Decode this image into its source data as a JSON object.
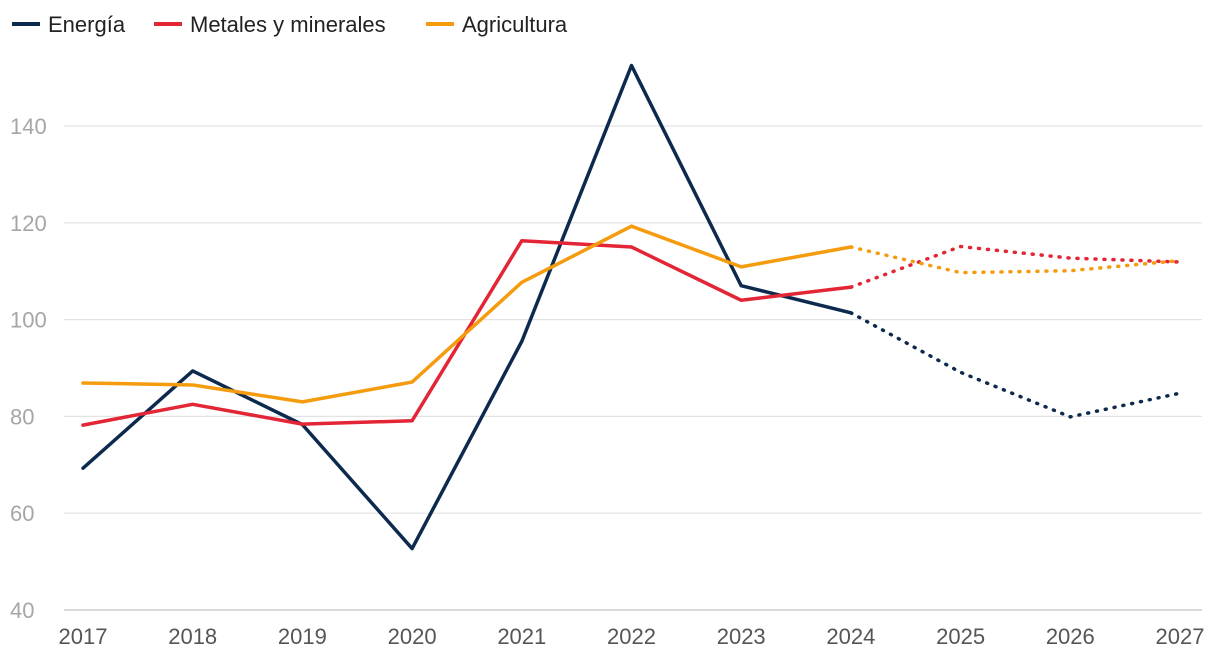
{
  "chart_data": {
    "type": "line",
    "title": "",
    "xlabel": "",
    "ylabel": "",
    "x": [
      "2017",
      "2018",
      "2019",
      "2020",
      "2021",
      "2022",
      "2023",
      "2024",
      "2025",
      "2026",
      "2027"
    ],
    "ylim": [
      40,
      150
    ],
    "yticks": [
      40,
      60,
      80,
      100,
      120,
      140
    ],
    "grid": true,
    "legend_position": "top-left",
    "forecast_from": "2024",
    "series": [
      {
        "name": "Energía",
        "color": "#0d2a4e",
        "values": [
          69.3,
          89.4,
          78.3,
          52.7,
          95.5,
          152.5,
          107.0,
          101.4,
          89.1,
          79.9,
          84.8
        ]
      },
      {
        "name": "Metales y minerales",
        "color": "#e32636",
        "values": [
          78.2,
          82.5,
          78.4,
          79.1,
          116.3,
          115.0,
          104.0,
          106.7,
          115.1,
          112.7,
          111.9
        ]
      },
      {
        "name": "Agricultura",
        "color": "#f59b0e",
        "values": [
          86.9,
          86.5,
          83.0,
          87.1,
          107.7,
          119.3,
          110.9,
          115.0,
          109.7,
          110.1,
          112.2
        ]
      }
    ]
  }
}
